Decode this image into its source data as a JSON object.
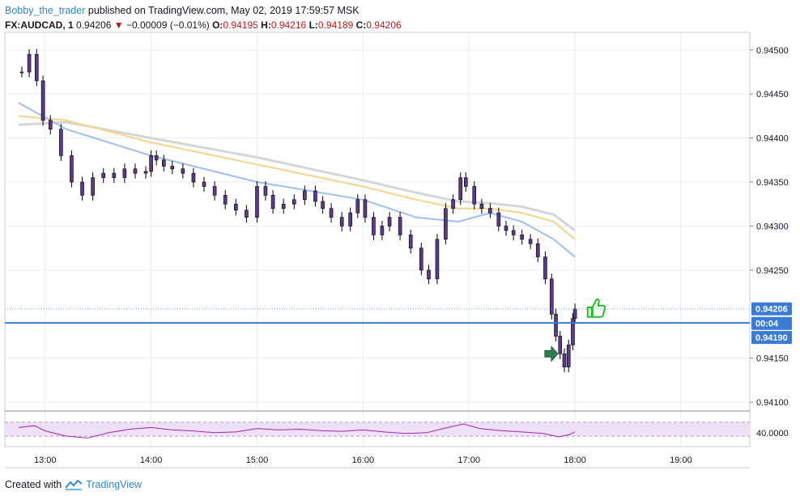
{
  "header": {
    "author": "Bobby_the_trader",
    "published_text": "published on TradingView.com, May 02, 2019 17:59:57 MSK",
    "symbol": "FX:AUDCAD, 1",
    "last": "0.94206",
    "change": "−0.00009 (−0.01%)",
    "o_label": "O:",
    "o_value": "0.94195",
    "h_label": "H:",
    "h_value": "0.94216",
    "l_label": "L:",
    "l_value": "0.94189",
    "c_label": "C:",
    "c_value": "0.94206"
  },
  "footer": {
    "created_with": "Created with",
    "brand": "TradingView"
  },
  "colors": {
    "candle_body": "#5b3a8c",
    "candle_wick": "#000000",
    "price_line": "#3a7bd5",
    "rsi_line": "#9c27b0",
    "rsi_band": "#ede0f7",
    "ema_fast": "#9fbff0",
    "ema_mid": "#f5d58a",
    "ema_slow": "#d6d6d6",
    "label_bg": "#3a7bd5"
  },
  "chart_data": {
    "type": "candlestick",
    "x_ticks": [
      "13:00",
      "14:00",
      "15:00",
      "16:00",
      "17:00",
      "18:00",
      "19:00"
    ],
    "y_ticks": [
      "0.94500",
      "0.94450",
      "0.94400",
      "0.94350",
      "0.94300",
      "0.94250",
      "0.94150",
      "0.94100"
    ],
    "ylim": [
      0.9409,
      0.9452
    ],
    "price_labels": {
      "last": "0.94206",
      "countdown": "00:04",
      "line": "0.94190"
    },
    "horizontal_line": 0.9419,
    "rsi": {
      "label": "40.0000",
      "level": 40,
      "band": [
        30,
        70
      ]
    },
    "candles": [
      [
        12.78,
        0.94475
      ],
      [
        12.85,
        0.94495
      ],
      [
        12.92,
        0.94465
      ],
      [
        12.98,
        0.9442
      ],
      [
        13.05,
        0.9441
      ],
      [
        13.15,
        0.9438
      ],
      [
        13.25,
        0.9435
      ],
      [
        13.35,
        0.94335
      ],
      [
        13.45,
        0.94355
      ],
      [
        13.55,
        0.9436
      ],
      [
        13.65,
        0.94355
      ],
      [
        13.75,
        0.94365
      ],
      [
        13.85,
        0.9436
      ],
      [
        13.95,
        0.94362
      ],
      [
        14.0,
        0.9438
      ],
      [
        14.05,
        0.94375
      ],
      [
        14.12,
        0.94368
      ],
      [
        14.2,
        0.94365
      ],
      [
        14.3,
        0.9436
      ],
      [
        14.4,
        0.9435
      ],
      [
        14.5,
        0.94345
      ],
      [
        14.6,
        0.94335
      ],
      [
        14.7,
        0.94325
      ],
      [
        14.8,
        0.94318
      ],
      [
        14.9,
        0.9431
      ],
      [
        15.0,
        0.94345
      ],
      [
        15.08,
        0.94335
      ],
      [
        15.15,
        0.9432
      ],
      [
        15.25,
        0.94325
      ],
      [
        15.35,
        0.9433
      ],
      [
        15.45,
        0.9434
      ],
      [
        15.55,
        0.94328
      ],
      [
        15.62,
        0.9432
      ],
      [
        15.7,
        0.9431
      ],
      [
        15.8,
        0.943
      ],
      [
        15.88,
        0.94315
      ],
      [
        15.95,
        0.9433
      ],
      [
        16.02,
        0.9431
      ],
      [
        16.1,
        0.9429
      ],
      [
        16.18,
        0.943
      ],
      [
        16.25,
        0.9431
      ],
      [
        16.35,
        0.9429
      ],
      [
        16.45,
        0.94275
      ],
      [
        16.55,
        0.9425
      ],
      [
        16.62,
        0.9424
      ],
      [
        16.7,
        0.94285
      ],
      [
        16.78,
        0.9432
      ],
      [
        16.85,
        0.9433
      ],
      [
        16.92,
        0.94355
      ],
      [
        16.97,
        0.94345
      ],
      [
        17.05,
        0.94325
      ],
      [
        17.12,
        0.9432
      ],
      [
        17.2,
        0.94315
      ],
      [
        17.28,
        0.943
      ],
      [
        17.35,
        0.94295
      ],
      [
        17.42,
        0.9429
      ],
      [
        17.5,
        0.94285
      ],
      [
        17.58,
        0.9428
      ],
      [
        17.65,
        0.94265
      ],
      [
        17.72,
        0.9424
      ],
      [
        17.78,
        0.942
      ],
      [
        17.82,
        0.94175
      ],
      [
        17.86,
        0.94155
      ],
      [
        17.9,
        0.9414
      ],
      [
        17.94,
        0.94165
      ],
      [
        17.98,
        0.94195
      ],
      [
        18.0,
        0.94206
      ]
    ],
    "ema_fast": [
      [
        12.75,
        0.9444
      ],
      [
        13.2,
        0.9441
      ],
      [
        14.0,
        0.9438
      ],
      [
        15.0,
        0.9435
      ],
      [
        16.0,
        0.9433
      ],
      [
        16.5,
        0.9431
      ],
      [
        16.9,
        0.94305
      ],
      [
        17.2,
        0.94315
      ],
      [
        17.5,
        0.94305
      ],
      [
        17.8,
        0.94285
      ],
      [
        18.0,
        0.94265
      ]
    ],
    "ema_mid": [
      [
        12.75,
        0.94425
      ],
      [
        13.2,
        0.9442
      ],
      [
        14.0,
        0.94395
      ],
      [
        15.0,
        0.9437
      ],
      [
        16.0,
        0.94345
      ],
      [
        16.5,
        0.9433
      ],
      [
        16.9,
        0.9432
      ],
      [
        17.2,
        0.9432
      ],
      [
        17.5,
        0.94315
      ],
      [
        17.8,
        0.94305
      ],
      [
        18.0,
        0.94285
      ]
    ],
    "ema_slow": [
      [
        12.75,
        0.94415
      ],
      [
        13.2,
        0.94418
      ],
      [
        14.0,
        0.944
      ],
      [
        15.0,
        0.94378
      ],
      [
        16.0,
        0.94352
      ],
      [
        16.5,
        0.94338
      ],
      [
        16.9,
        0.94328
      ],
      [
        17.2,
        0.94326
      ],
      [
        17.5,
        0.94322
      ],
      [
        17.8,
        0.94313
      ],
      [
        18.0,
        0.94295
      ]
    ],
    "rsi_values": [
      [
        12.75,
        55
      ],
      [
        12.9,
        60
      ],
      [
        13.0,
        45
      ],
      [
        13.2,
        30
      ],
      [
        13.4,
        25
      ],
      [
        13.6,
        40
      ],
      [
        13.8,
        50
      ],
      [
        14.0,
        55
      ],
      [
        14.2,
        48
      ],
      [
        14.4,
        45
      ],
      [
        14.6,
        40
      ],
      [
        14.8,
        42
      ],
      [
        15.0,
        52
      ],
      [
        15.2,
        48
      ],
      [
        15.4,
        50
      ],
      [
        15.6,
        46
      ],
      [
        15.8,
        44
      ],
      [
        16.0,
        48
      ],
      [
        16.2,
        42
      ],
      [
        16.4,
        38
      ],
      [
        16.6,
        40
      ],
      [
        16.8,
        55
      ],
      [
        16.95,
        65
      ],
      [
        17.1,
        52
      ],
      [
        17.3,
        46
      ],
      [
        17.5,
        42
      ],
      [
        17.7,
        38
      ],
      [
        17.85,
        28
      ],
      [
        17.95,
        35
      ],
      [
        18.0,
        42
      ]
    ]
  }
}
